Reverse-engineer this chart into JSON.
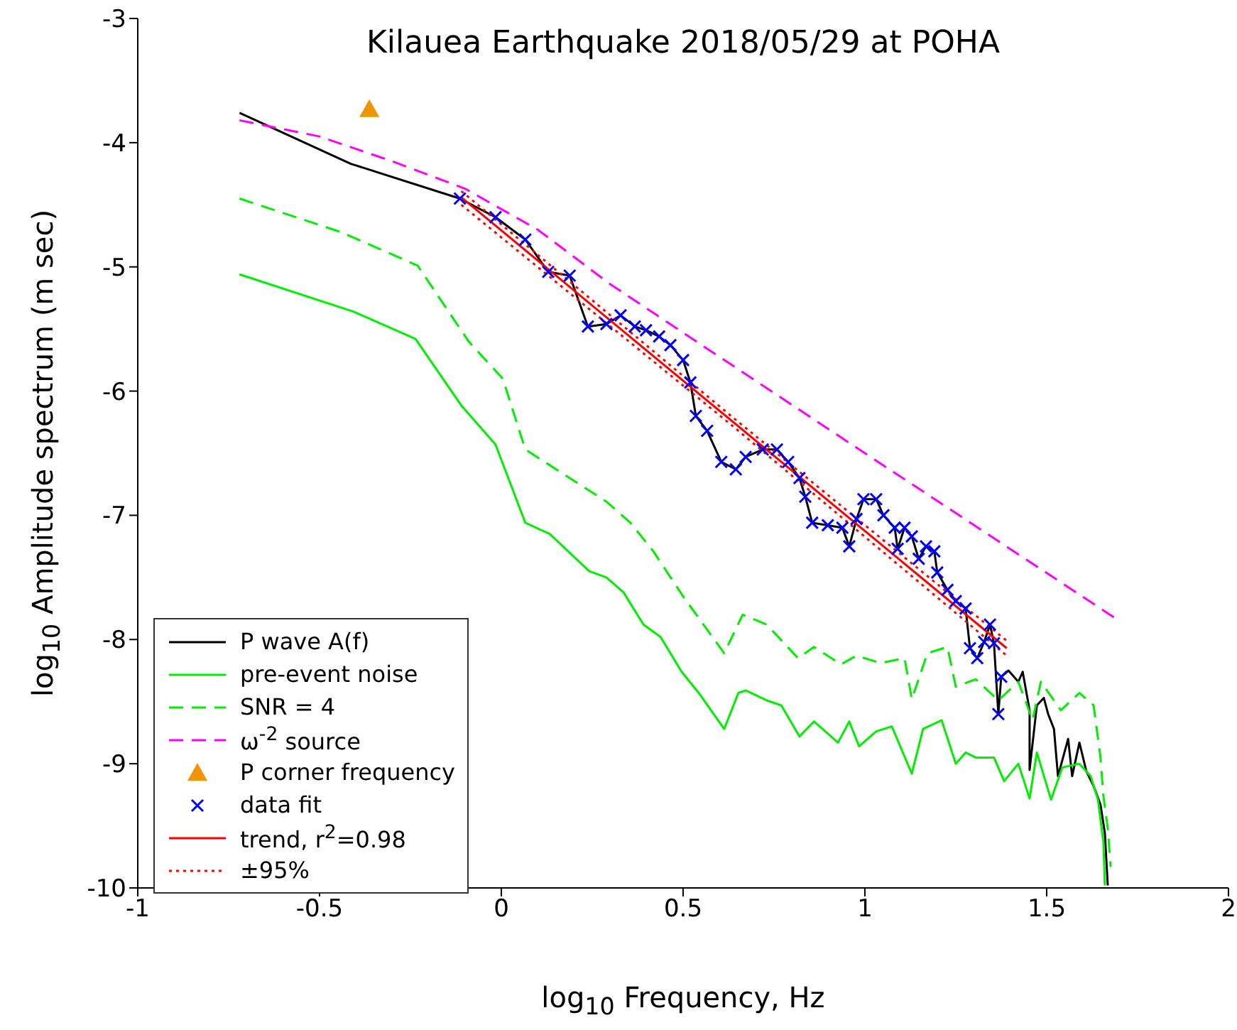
{
  "chart_data": {
    "type": "line",
    "title": "Kilauea Earthquake 2018/05/29 at POHA",
    "xlabel": "log$_{10}$ Frequency, Hz",
    "ylabel": "log$_{10}$ Amplitude spectrum (m sec)",
    "xlim": [
      -1,
      2
    ],
    "xticks": [
      -1,
      -0.5,
      0,
      0.5,
      1,
      1.5,
      2
    ],
    "ylim": [
      -10,
      -3
    ],
    "yticks": [
      -10,
      -9,
      -8,
      -7,
      -6,
      -5,
      -4,
      -3
    ],
    "grid": false,
    "legend": "bottom left",
    "series": [
      {
        "name": "P wave A(f)",
        "color": "#000000",
        "line_style": "solid",
        "marker": "none",
        "x": [
          -0.72,
          -0.414,
          -0.114,
          -0.016,
          0.066,
          0.129,
          0.188,
          0.238,
          0.289,
          0.328,
          0.367,
          0.398,
          0.434,
          0.465,
          0.5,
          0.52,
          0.535,
          0.566,
          0.605,
          0.645,
          0.672,
          0.719,
          0.758,
          0.789,
          0.82,
          0.836,
          0.855,
          0.898,
          0.938,
          0.957,
          0.977,
          0.996,
          1.031,
          1.051,
          1.082,
          1.09,
          1.109,
          1.129,
          1.148,
          1.168,
          1.191,
          1.199,
          1.227,
          1.25,
          1.277,
          1.289,
          1.309,
          1.328,
          1.344,
          1.355,
          1.367,
          1.375,
          1.395,
          1.422,
          1.434,
          1.453,
          1.453,
          1.473,
          1.492,
          1.504,
          1.52,
          1.531,
          1.559,
          1.57,
          1.59,
          1.609,
          1.629,
          1.648,
          1.66,
          1.668
        ],
        "values": [
          -3.76,
          -4.17,
          -4.45,
          -4.6,
          -4.78,
          -5.04,
          -5.07,
          -5.48,
          -5.46,
          -5.39,
          -5.48,
          -5.51,
          -5.56,
          -5.63,
          -5.75,
          -5.93,
          -6.2,
          -6.32,
          -6.57,
          -6.63,
          -6.53,
          -6.47,
          -6.47,
          -6.57,
          -6.7,
          -6.85,
          -7.06,
          -7.08,
          -7.1,
          -7.25,
          -7.03,
          -6.87,
          -6.87,
          -7.0,
          -7.1,
          -7.27,
          -7.1,
          -7.17,
          -7.35,
          -7.25,
          -7.29,
          -7.46,
          -7.6,
          -7.69,
          -7.75,
          -8.07,
          -8.15,
          -8.02,
          -7.88,
          -8.03,
          -8.6,
          -8.3,
          -8.25,
          -8.34,
          -8.26,
          -8.57,
          -9.05,
          -8.53,
          -8.47,
          -8.6,
          -8.72,
          -9.1,
          -8.8,
          -9.1,
          -8.83,
          -9.06,
          -9.18,
          -9.33,
          -9.56,
          -9.98
        ]
      },
      {
        "name": "pre-event noise",
        "color": "#00ee00",
        "line_style": "solid",
        "marker": "none",
        "x": [
          -0.72,
          -0.407,
          -0.236,
          -0.109,
          -0.016,
          0.066,
          0.133,
          0.242,
          0.289,
          0.336,
          0.391,
          0.438,
          0.496,
          0.543,
          0.613,
          0.652,
          0.672,
          0.73,
          0.77,
          0.82,
          0.86,
          0.926,
          0.957,
          0.984,
          1.031,
          1.074,
          1.129,
          1.16,
          1.211,
          1.25,
          1.277,
          1.305,
          1.355,
          1.383,
          1.422,
          1.453,
          1.473,
          1.512,
          1.543,
          1.59,
          1.621,
          1.641,
          1.656,
          1.66
        ],
        "values": [
          -5.06,
          -5.36,
          -5.58,
          -6.12,
          -6.43,
          -7.06,
          -7.15,
          -7.45,
          -7.5,
          -7.62,
          -7.88,
          -7.98,
          -8.26,
          -8.43,
          -8.72,
          -8.43,
          -8.41,
          -8.49,
          -8.53,
          -8.78,
          -8.66,
          -8.83,
          -8.66,
          -8.86,
          -8.74,
          -8.7,
          -9.08,
          -8.72,
          -8.65,
          -9.0,
          -8.91,
          -8.95,
          -8.95,
          -9.14,
          -9.0,
          -9.28,
          -8.91,
          -9.29,
          -9.03,
          -9.0,
          -9.1,
          -9.29,
          -9.63,
          -9.98
        ]
      },
      {
        "name": "SNR = 4",
        "color": "#00ee00",
        "line_style": "dashed",
        "marker": "none",
        "x": [
          -0.72,
          -0.441,
          -0.23,
          -0.09,
          0.004,
          0.066,
          0.289,
          0.355,
          0.418,
          0.504,
          0.566,
          0.613,
          0.664,
          0.73,
          0.816,
          0.86,
          0.934,
          0.977,
          1.043,
          1.109,
          1.129,
          1.172,
          1.227,
          1.25,
          1.305,
          1.367,
          1.422,
          1.461,
          1.484,
          1.539,
          1.59,
          1.629,
          1.648,
          1.656,
          1.668,
          1.676
        ],
        "values": [
          -4.45,
          -4.72,
          -4.99,
          -5.6,
          -5.9,
          -6.47,
          -6.89,
          -7.06,
          -7.29,
          -7.67,
          -7.92,
          -8.11,
          -7.8,
          -7.88,
          -8.15,
          -8.06,
          -8.2,
          -8.13,
          -8.19,
          -8.15,
          -8.48,
          -8.11,
          -8.06,
          -8.38,
          -8.32,
          -8.49,
          -8.34,
          -8.65,
          -8.34,
          -8.57,
          -8.43,
          -8.53,
          -8.95,
          -9.26,
          -9.52,
          -9.83
        ]
      },
      {
        "name": "ω$^{-2}$ source",
        "color": "#ff00ff",
        "line_style": "dashed",
        "marker": "none",
        "x": [
          -0.72,
          -0.5,
          -0.3,
          -0.1,
          0.1,
          0.3,
          0.5,
          1.0,
          1.7
        ],
        "values": [
          -3.82,
          -3.95,
          -4.15,
          -4.37,
          -4.7,
          -5.14,
          -5.53,
          -6.5,
          -7.85
        ]
      },
      {
        "name": "P corner frequency",
        "color": "#f0950a",
        "type": "scatter",
        "marker": "triangle",
        "x": [
          -0.363
        ],
        "values": [
          -3.73
        ]
      },
      {
        "name": "data fit",
        "color": "#0000ff",
        "type": "scatter",
        "marker": "cross",
        "x": [
          -0.114,
          -0.016,
          0.066,
          0.129,
          0.188,
          0.238,
          0.289,
          0.328,
          0.367,
          0.398,
          0.434,
          0.465,
          0.5,
          0.52,
          0.535,
          0.566,
          0.605,
          0.645,
          0.672,
          0.719,
          0.758,
          0.789,
          0.82,
          0.836,
          0.855,
          0.898,
          0.938,
          0.957,
          0.977,
          0.996,
          1.031,
          1.051,
          1.082,
          1.09,
          1.109,
          1.129,
          1.148,
          1.168,
          1.191,
          1.199,
          1.227,
          1.25,
          1.277,
          1.289,
          1.309,
          1.328,
          1.344,
          1.355,
          1.367,
          1.375
        ],
        "values": [
          -4.45,
          -4.6,
          -4.78,
          -5.04,
          -5.07,
          -5.48,
          -5.46,
          -5.39,
          -5.48,
          -5.51,
          -5.56,
          -5.63,
          -5.75,
          -5.93,
          -6.2,
          -6.32,
          -6.57,
          -6.63,
          -6.53,
          -6.47,
          -6.47,
          -6.57,
          -6.7,
          -6.85,
          -7.06,
          -7.08,
          -7.1,
          -7.25,
          -7.03,
          -6.87,
          -6.87,
          -7.0,
          -7.1,
          -7.27,
          -7.1,
          -7.17,
          -7.35,
          -7.25,
          -7.29,
          -7.46,
          -7.6,
          -7.69,
          -7.75,
          -8.07,
          -8.15,
          -8.02,
          -7.88,
          -8.03,
          -8.6,
          -8.3
        ]
      },
      {
        "name": "trend,  r$^{2}$=0.98",
        "color": "#ff0000",
        "line_style": "solid",
        "marker": "none",
        "x": [
          -0.11,
          1.39
        ],
        "values": [
          -4.44,
          -8.07
        ]
      },
      {
        "name": "±95%",
        "color": "#ff0000",
        "line_style": "dotted",
        "marker": "none",
        "x": [
          -0.11,
          0.64,
          1.39
        ],
        "values": [
          -4.39,
          -6.22,
          -8.01
        ]
      },
      {
        "color": "#ff0000",
        "line_style": "dotted",
        "marker": "none",
        "x": [
          -0.11,
          0.64,
          1.39
        ],
        "values": [
          -4.5,
          -6.29,
          -8.13
        ]
      }
    ]
  }
}
